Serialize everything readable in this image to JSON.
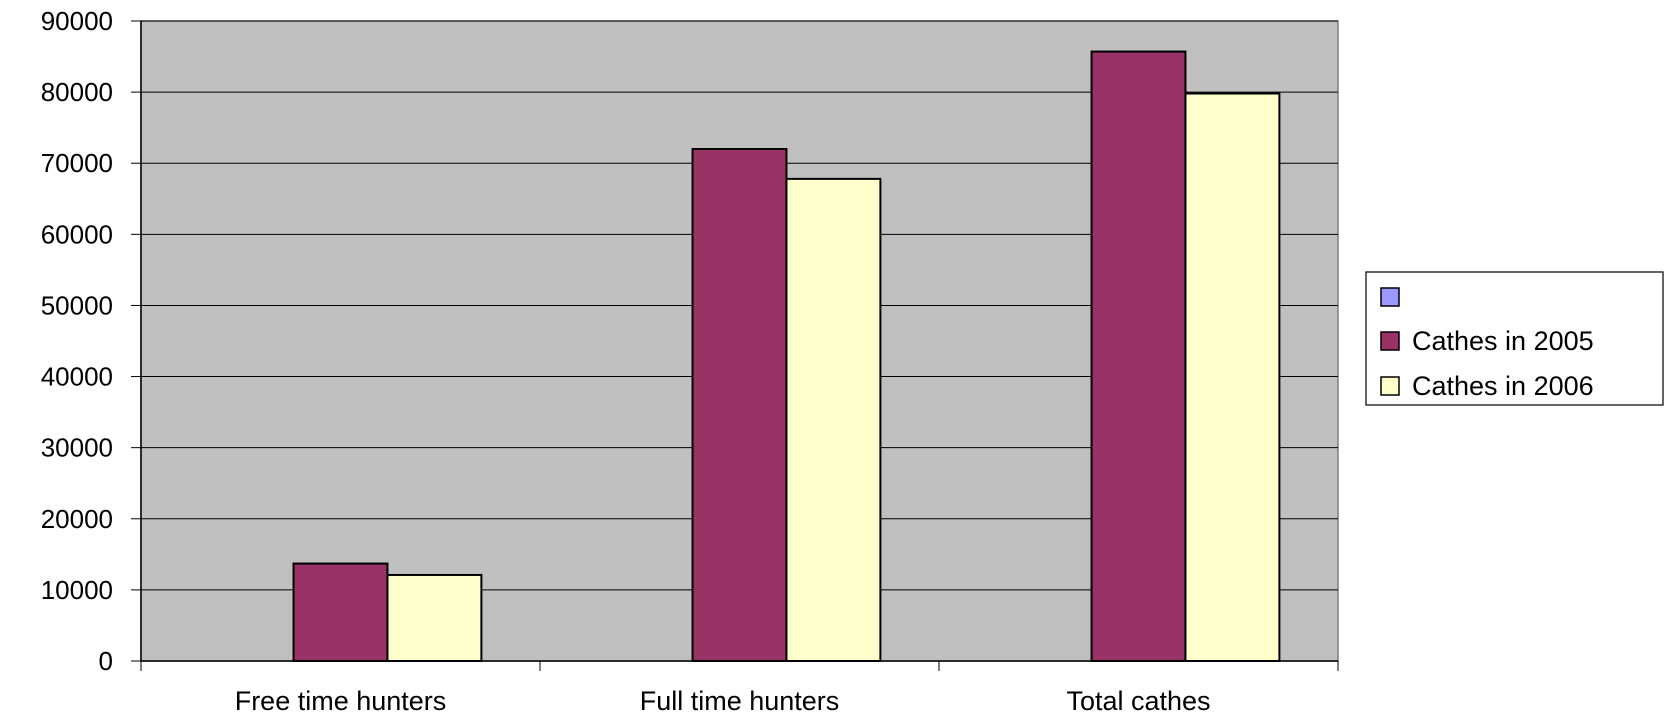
{
  "chart_data": {
    "type": "bar",
    "categories": [
      "Free time hunters",
      "Full time hunters",
      "Total cathes"
    ],
    "series": [
      {
        "name": "",
        "values": [
          0,
          0,
          0
        ],
        "color": "#9999ff"
      },
      {
        "name": "Cathes in 2005",
        "values": [
          13700,
          72000,
          85700
        ],
        "color": "#993366"
      },
      {
        "name": "Cathes in 2006",
        "values": [
          12100,
          67800,
          79800
        ],
        "color": "#ffffcc"
      }
    ],
    "ylim": [
      0,
      90000
    ],
    "yticks": [
      0,
      10000,
      20000,
      30000,
      40000,
      50000,
      60000,
      70000,
      80000,
      90000
    ],
    "plot_background": "#c0c0c0",
    "grid": true,
    "legend_position": "right"
  }
}
